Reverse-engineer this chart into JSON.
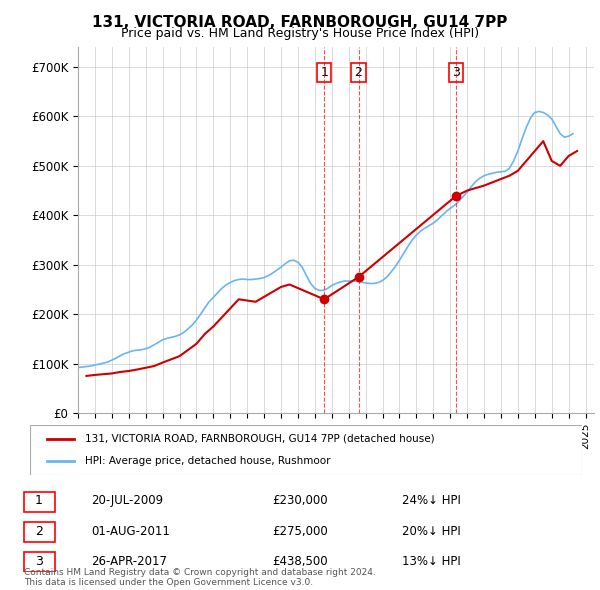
{
  "title": "131, VICTORIA ROAD, FARNBOROUGH, GU14 7PP",
  "subtitle": "Price paid vs. HM Land Registry's House Price Index (HPI)",
  "ylabel_ticks": [
    "£0",
    "£100K",
    "£200K",
    "£300K",
    "£400K",
    "£500K",
    "£600K",
    "£700K"
  ],
  "ytick_values": [
    0,
    100000,
    200000,
    300000,
    400000,
    500000,
    600000,
    700000
  ],
  "ylim": [
    0,
    740000
  ],
  "xlim_start": 1995.0,
  "xlim_end": 2025.5,
  "legend_line1": "131, VICTORIA ROAD, FARNBOROUGH, GU14 7PP (detached house)",
  "legend_line2": "HPI: Average price, detached house, Rushmoor",
  "transactions": [
    {
      "num": 1,
      "date": "20-JUL-2009",
      "price": 230000,
      "pct": "24%↓ HPI",
      "year": 2009.55
    },
    {
      "num": 2,
      "date": "01-AUG-2011",
      "price": 275000,
      "pct": "20%↓ HPI",
      "year": 2011.58
    },
    {
      "num": 3,
      "date": "26-APR-2017",
      "price": 438500,
      "pct": "13%↓ HPI",
      "year": 2017.32
    }
  ],
  "hpi_color": "#6ab4f0",
  "price_color": "#cc0000",
  "grid_color": "#cccccc",
  "background_color": "#ffffff",
  "footnote1": "Contains HM Land Registry data © Crown copyright and database right 2024.",
  "footnote2": "This data is licensed under the Open Government Licence v3.0.",
  "hpi_data_x": [
    1995,
    1995.25,
    1995.5,
    1995.75,
    1996,
    1996.25,
    1996.5,
    1996.75,
    1997,
    1997.25,
    1997.5,
    1997.75,
    1998,
    1998.25,
    1998.5,
    1998.75,
    1999,
    1999.25,
    1999.5,
    1999.75,
    2000,
    2000.25,
    2000.5,
    2000.75,
    2001,
    2001.25,
    2001.5,
    2001.75,
    2002,
    2002.25,
    2002.5,
    2002.75,
    2003,
    2003.25,
    2003.5,
    2003.75,
    2004,
    2004.25,
    2004.5,
    2004.75,
    2005,
    2005.25,
    2005.5,
    2005.75,
    2006,
    2006.25,
    2006.5,
    2006.75,
    2007,
    2007.25,
    2007.5,
    2007.75,
    2008,
    2008.25,
    2008.5,
    2008.75,
    2009,
    2009.25,
    2009.5,
    2009.75,
    2010,
    2010.25,
    2010.5,
    2010.75,
    2011,
    2011.25,
    2011.5,
    2011.75,
    2012,
    2012.25,
    2012.5,
    2012.75,
    2013,
    2013.25,
    2013.5,
    2013.75,
    2014,
    2014.25,
    2014.5,
    2014.75,
    2015,
    2015.25,
    2015.5,
    2015.75,
    2016,
    2016.25,
    2016.5,
    2016.75,
    2017,
    2017.25,
    2017.5,
    2017.75,
    2018,
    2018.25,
    2018.5,
    2018.75,
    2019,
    2019.25,
    2019.5,
    2019.75,
    2020,
    2020.25,
    2020.5,
    2020.75,
    2021,
    2021.25,
    2021.5,
    2021.75,
    2022,
    2022.25,
    2022.5,
    2022.75,
    2023,
    2023.25,
    2023.5,
    2023.75,
    2024,
    2024.25
  ],
  "hpi_data_y": [
    92000,
    93000,
    94000,
    95000,
    97000,
    99000,
    101000,
    103000,
    107000,
    111000,
    116000,
    120000,
    123000,
    126000,
    127000,
    128000,
    130000,
    133000,
    138000,
    143000,
    148000,
    151000,
    153000,
    155000,
    158000,
    163000,
    170000,
    178000,
    188000,
    200000,
    213000,
    225000,
    234000,
    243000,
    252000,
    259000,
    264000,
    268000,
    270000,
    271000,
    270000,
    270000,
    271000,
    272000,
    274000,
    278000,
    283000,
    289000,
    295000,
    302000,
    308000,
    309000,
    305000,
    295000,
    278000,
    262000,
    252000,
    248000,
    248000,
    252000,
    258000,
    262000,
    265000,
    267000,
    267000,
    267000,
    266000,
    265000,
    263000,
    262000,
    262000,
    264000,
    268000,
    275000,
    285000,
    296000,
    309000,
    323000,
    337000,
    350000,
    360000,
    368000,
    374000,
    379000,
    384000,
    391000,
    399000,
    407000,
    414000,
    420000,
    428000,
    437000,
    447000,
    458000,
    468000,
    475000,
    480000,
    483000,
    485000,
    487000,
    488000,
    489000,
    495000,
    510000,
    530000,
    555000,
    578000,
    597000,
    608000,
    610000,
    608000,
    603000,
    595000,
    580000,
    565000,
    558000,
    560000,
    565000
  ],
  "price_data_x": [
    1995.5,
    1996.0,
    1997.0,
    1997.5,
    1998.0,
    1998.5,
    1999.5,
    2000.0,
    2001.0,
    2002.0,
    2002.5,
    2003.0,
    2004.5,
    2005.5,
    2006.0,
    2006.5,
    2007.0,
    2007.5,
    2009.55,
    2011.58,
    2017.32,
    2018.0,
    2019.0,
    2020.5,
    2021.0,
    2022.0,
    2022.5,
    2023.0,
    2023.5,
    2024.0,
    2024.5
  ],
  "price_data_y": [
    75000,
    77000,
    80000,
    83000,
    85000,
    88000,
    95000,
    102000,
    115000,
    140000,
    160000,
    175000,
    230000,
    225000,
    235000,
    245000,
    255000,
    260000,
    230000,
    275000,
    438500,
    450000,
    460000,
    480000,
    490000,
    530000,
    550000,
    510000,
    500000,
    520000,
    530000
  ]
}
